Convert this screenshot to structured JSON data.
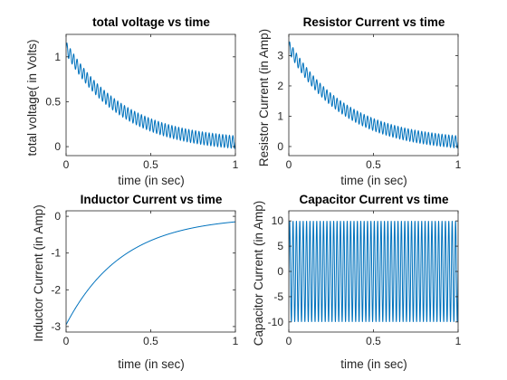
{
  "colors": {
    "line": "#0072BD",
    "axis": "#262626",
    "background": "#ffffff"
  },
  "chart_data": [
    {
      "type": "line",
      "title": "total voltage vs time",
      "xlabel": "time (in sec)",
      "ylabel": "total voltage( in Volts)",
      "xlim": [
        0,
        1
      ],
      "ylim": [
        -0.1,
        1.25
      ],
      "xticks": [
        0,
        0.5,
        1
      ],
      "xtick_labels": [
        "0",
        "0.5",
        "1"
      ],
      "yticks": [
        0,
        0.5,
        1
      ],
      "ytick_labels": [
        "0",
        "0.5",
        "1"
      ],
      "grid": false,
      "series": [
        {
          "trend_start": 1.1,
          "trend_end": 0.05,
          "decay_rate": 3,
          "oscillation_amplitude": 0.07,
          "oscillation_cycles": 50
        }
      ]
    },
    {
      "type": "line",
      "title": "Resistor Current vs time",
      "xlabel": "time (in sec)",
      "ylabel": "Resistor Current (in Amp)",
      "xlim": [
        0,
        1
      ],
      "ylim": [
        -0.3,
        3.7
      ],
      "xticks": [
        0,
        0.5,
        1
      ],
      "xtick_labels": [
        "0",
        "0.5",
        "1"
      ],
      "yticks": [
        0,
        1,
        2,
        3
      ],
      "ytick_labels": [
        "0",
        "1",
        "2",
        "3"
      ],
      "grid": false,
      "series": [
        {
          "trend_start": 3.3,
          "trend_end": 0.15,
          "decay_rate": 3,
          "oscillation_amplitude": 0.2,
          "oscillation_cycles": 50
        }
      ]
    },
    {
      "type": "line",
      "title": "Inductor Current vs time",
      "xlabel": "time (in sec)",
      "ylabel": "Inductor Current (in Amp)",
      "xlim": [
        0,
        1
      ],
      "ylim": [
        -3.15,
        0.15
      ],
      "xticks": [
        0,
        0.5,
        1
      ],
      "xtick_labels": [
        "0",
        "0.5",
        "1"
      ],
      "yticks": [
        -3,
        -2,
        -1,
        0
      ],
      "ytick_labels": [
        "-3",
        "-2",
        "-1",
        "0"
      ],
      "grid": false,
      "series": [
        {
          "trend_start": -2.95,
          "trend_end": -0.15,
          "decay_rate": 3,
          "oscillation_amplitude": 0,
          "oscillation_cycles": 0
        }
      ]
    },
    {
      "type": "line",
      "title": "Capacitor Current vs time",
      "xlabel": "time (in sec)",
      "ylabel": "Capacitor Current (in Amp)",
      "xlim": [
        0,
        1
      ],
      "ylim": [
        -12,
        12
      ],
      "xticks": [
        0,
        0.5,
        1
      ],
      "xtick_labels": [
        "0",
        "0.5",
        "1"
      ],
      "yticks": [
        -10,
        -5,
        0,
        5,
        10
      ],
      "ytick_labels": [
        "-10",
        "-5",
        "0",
        "5",
        "10"
      ],
      "grid": false,
      "series": [
        {
          "trend_start": 0,
          "trend_end": 0,
          "decay_rate": 0,
          "oscillation_amplitude": 10,
          "oscillation_cycles": 50
        }
      ]
    }
  ]
}
